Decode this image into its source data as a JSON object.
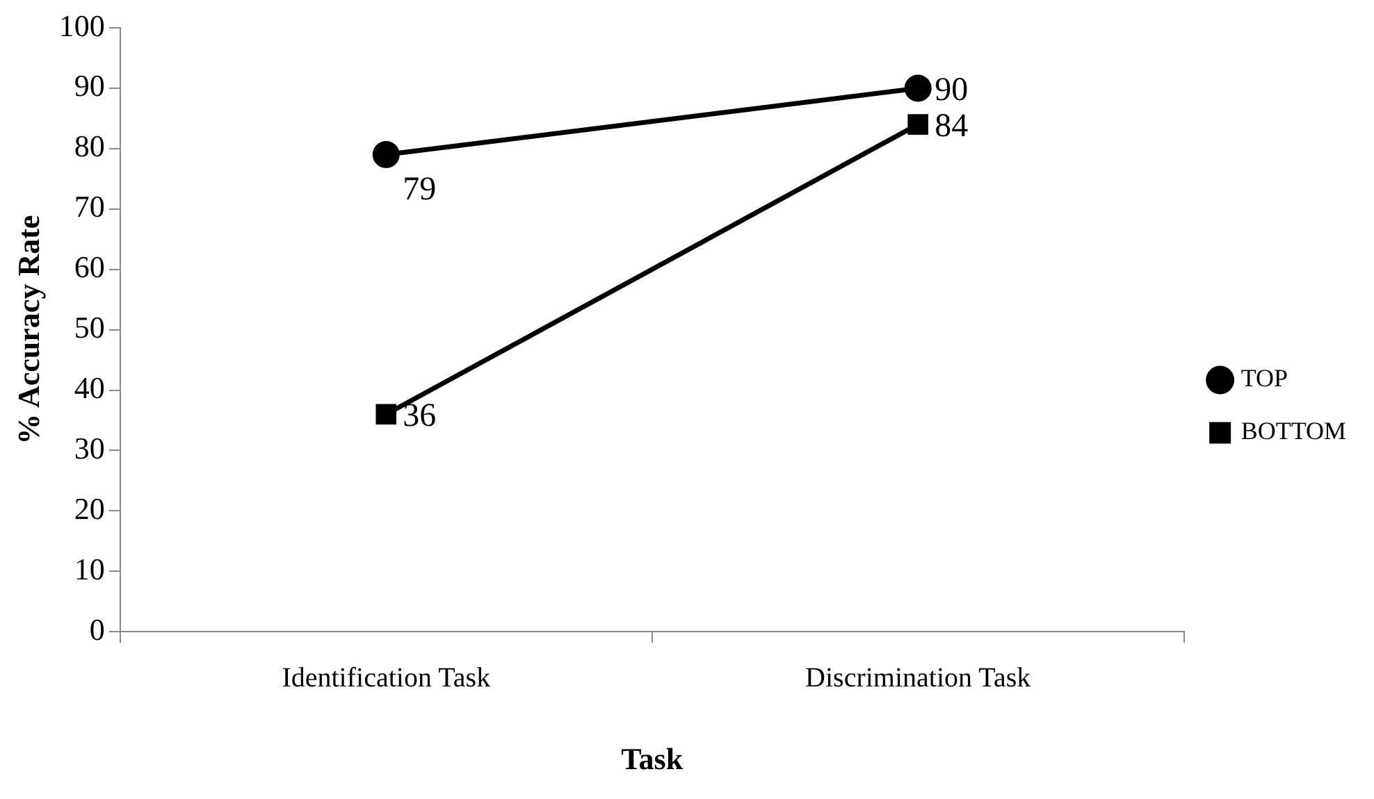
{
  "chart_data": {
    "type": "line",
    "xlabel": "Task",
    "ylabel": "% Accuracy Rate",
    "categories": [
      "Identification Task",
      "Discrimination Task"
    ],
    "series": [
      {
        "name": "TOP",
        "color": "#000000",
        "marker": "circle",
        "values": [
          79,
          90
        ]
      },
      {
        "name": "BOTTOM",
        "color": "#000000",
        "marker": "square",
        "values": [
          36,
          84
        ]
      }
    ],
    "ylim": [
      0,
      100
    ],
    "yticks": [
      0,
      10,
      20,
      30,
      40,
      50,
      60,
      70,
      80,
      90,
      100
    ],
    "grid": false,
    "legend": "right",
    "data_labels": true,
    "line_style": "solid"
  }
}
